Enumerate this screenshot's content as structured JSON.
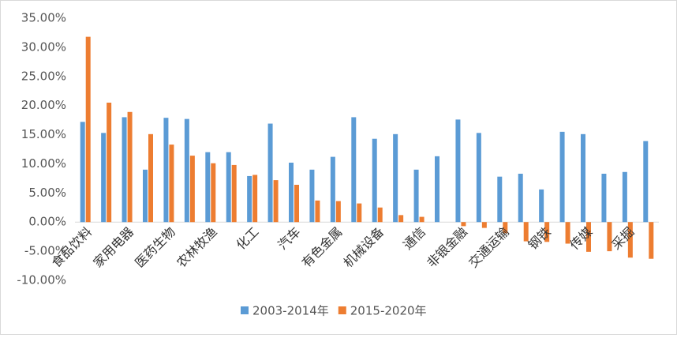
{
  "chart_data": {
    "type": "bar",
    "categories": [
      "食品饮料",
      null,
      "家用电器",
      null,
      "医药生物",
      null,
      "农林牧渔",
      null,
      "化工",
      null,
      "汽车",
      null,
      "有色金属",
      null,
      "机械设备",
      null,
      "通信",
      null,
      "非银金融",
      null,
      "交通运输",
      null,
      "钢铁",
      null,
      "传媒",
      null,
      "采掘",
      null
    ],
    "series": [
      {
        "name": "2003-2014年",
        "color": "#5b9bd5",
        "values": [
          17.2,
          15.3,
          18.0,
          9.0,
          17.9,
          17.7,
          12.0,
          12.0,
          7.9,
          16.9,
          10.2,
          9.0,
          11.2,
          18.0,
          14.3,
          15.1,
          9.0,
          11.3,
          17.6,
          15.3,
          7.8,
          8.3,
          5.6,
          15.5,
          15.1,
          8.3,
          8.6,
          13.9
        ]
      },
      {
        "name": "2015-2020年",
        "color": "#ed7d31",
        "values": [
          31.8,
          20.5,
          18.9,
          15.1,
          13.3,
          11.4,
          10.1,
          9.8,
          8.1,
          7.2,
          6.4,
          3.7,
          3.6,
          3.2,
          2.5,
          1.2,
          0.9,
          0,
          -0.7,
          -1.0,
          -1.9,
          -3.3,
          -3.4,
          -3.7,
          -5.1,
          -5.0,
          -6.1,
          -6.3
        ]
      }
    ],
    "ylim": [
      -10,
      35
    ],
    "yticks": [
      {
        "value": -10,
        "label": "-10.00%"
      },
      {
        "value": -5,
        "label": "-5.00%"
      },
      {
        "value": 0,
        "label": "0.00%"
      },
      {
        "value": 5,
        "label": "5.00%"
      },
      {
        "value": 10,
        "label": "10.00%"
      },
      {
        "value": 15,
        "label": "15.00%"
      },
      {
        "value": 20,
        "label": "20.00%"
      },
      {
        "value": 25,
        "label": "25.00%"
      },
      {
        "value": 30,
        "label": "30.00%"
      },
      {
        "value": 35,
        "label": "35.00%"
      }
    ],
    "grid": false,
    "legend": "bottom"
  }
}
